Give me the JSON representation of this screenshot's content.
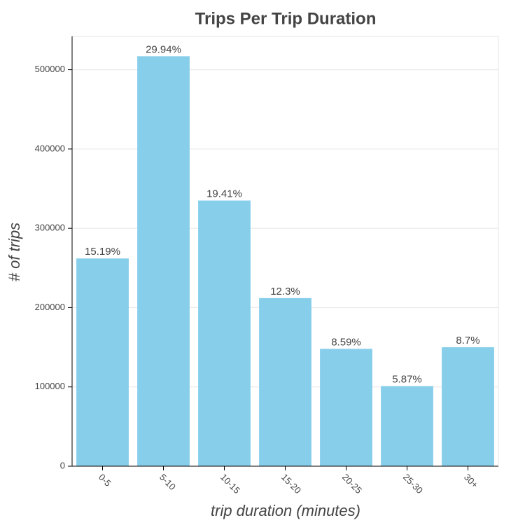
{
  "chart_data": {
    "type": "bar",
    "title": "Trips Per Trip Duration",
    "x_label": "trip duration (minutes)",
    "y_label": "# of trips",
    "categories": [
      "0-5",
      "5-10",
      "10-15",
      "15-20",
      "20-25",
      "25-30",
      "30+"
    ],
    "values": [
      262000,
      517000,
      335000,
      212000,
      148000,
      101000,
      150000
    ],
    "bar_labels": [
      "15.19%",
      "29.94%",
      "19.41%",
      "12.3%",
      "8.59%",
      "5.87%",
      "8.7%"
    ],
    "color": "#87ceeb",
    "ylim": [
      0,
      542000
    ],
    "yticks": [
      0,
      100000,
      200000,
      300000,
      400000,
      500000
    ],
    "grid": true
  }
}
